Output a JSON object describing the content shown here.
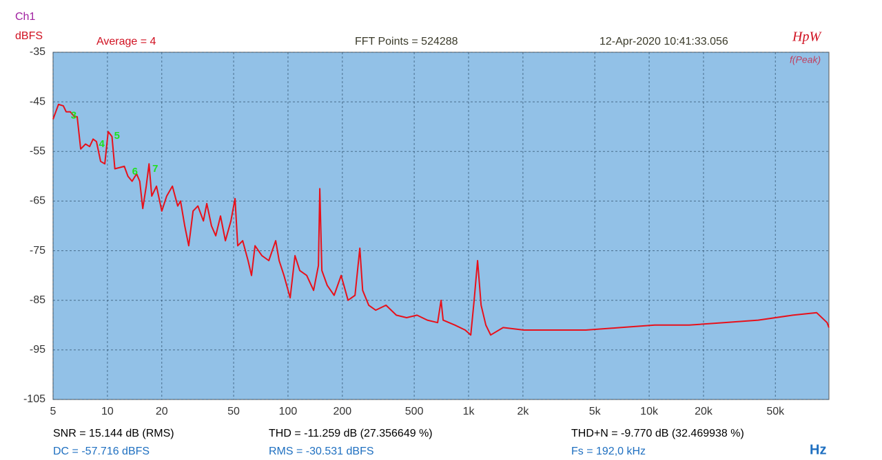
{
  "chart_data": {
    "type": "line",
    "channel": "Ch1",
    "y_label": "dBFS",
    "x_label": "Hz",
    "header": {
      "average": "Average = 4",
      "fft_points": "FFT Points = 524288",
      "timestamp": "12-Apr-2020 10:41:33.056",
      "logo": "HpW",
      "mode": "f(Peak)"
    },
    "footer": {
      "snr": "SNR = 15.144 dB (RMS)",
      "thd": "THD = -11.259 dB (27.356649 %)",
      "thdn": "THD+N = -9.770 dB (32.469938 %)",
      "dc": "DC = -57.716 dBFS",
      "rms": "RMS = -30.531 dBFS",
      "fs": "Fs = 192,0 kHz"
    },
    "xlog": true,
    "grid": true,
    "xlim": [
      5,
      99000
    ],
    "ylim": [
      -105,
      -35
    ],
    "xticks": [
      5,
      10,
      20,
      50,
      100,
      200,
      500,
      {
        "value": 1000,
        "label": "1k"
      },
      {
        "value": 2000,
        "label": "2k"
      },
      {
        "value": 5000,
        "label": "5k"
      },
      {
        "value": 10000,
        "label": "10k"
      },
      {
        "value": 20000,
        "label": "20k"
      },
      {
        "value": 50000,
        "label": "50k"
      }
    ],
    "yticks": [
      -35,
      -45,
      -55,
      -65,
      -75,
      -85,
      -95,
      -105
    ],
    "series": [
      {
        "color": "#e8101a",
        "x": [
          5,
          5.36,
          5.7,
          5.91,
          6.23,
          6.57,
          6.8,
          7.11,
          7.56,
          7.97,
          8.33,
          8.7,
          9.17,
          9.67,
          10.1,
          10.6,
          11.0,
          12.4,
          13.0,
          13.7,
          14.5,
          15.1,
          15.7,
          16.4,
          17.0,
          17.6,
          18.7,
          20.0,
          21.3,
          22.9,
          24.5,
          25.4,
          26.8,
          28.2,
          29.8,
          31.7,
          34.0,
          35.5,
          37.7,
          39.8,
          42.3,
          45.0,
          48.3,
          50.9,
          52.7,
          56.1,
          60.1,
          62.8,
          65.7,
          71.7,
          78.3,
          85.5,
          89.3,
          95.0,
          102.8,
          109.3,
          116.2,
          126.9,
          138.6,
          147.4,
          150,
          154,
          165,
          180,
          197,
          215,
          235,
          250,
          259,
          280,
          306,
          349,
          398,
          454,
          518,
          591,
          674,
          704,
          723,
          840,
          958,
          1028,
          1074,
          1122,
          1173,
          1247,
          1326,
          1554,
          2023,
          2873,
          4460,
          6919,
          10740,
          16670,
          25870,
          40150,
          62310,
          84700,
          96700,
          99000
        ],
        "values": [
          -48.5,
          -45.5,
          -45.8,
          -47,
          -47,
          -48,
          -48,
          -54.5,
          -53.5,
          -54,
          -52.5,
          -53,
          -57,
          -57.5,
          -51,
          -52,
          -58.5,
          -58,
          -60,
          -61,
          -59.5,
          -61,
          -66.5,
          -62,
          -57.5,
          -64,
          -62,
          -67,
          -64,
          -62,
          -66,
          -65,
          -70,
          -74,
          -67,
          -66,
          -69,
          -65.5,
          -70,
          -72,
          -68,
          -73,
          -69,
          -64.5,
          -74,
          -73,
          -77,
          -80,
          -74,
          -76,
          -77,
          -73,
          -77,
          -80,
          -84.5,
          -76,
          -79,
          -80,
          -83,
          -78,
          -62.5,
          -79,
          -82,
          -84,
          -80,
          -85,
          -84,
          -74.5,
          -83,
          -86,
          -87,
          -86,
          -88,
          -88.5,
          -88,
          -89,
          -89.5,
          -85,
          -89,
          -90,
          -91,
          -92,
          -85,
          -77,
          -86,
          -90,
          -92,
          -90.5,
          -91,
          -91,
          -91,
          -90.5,
          -90,
          -90,
          -89.5,
          -89,
          -88,
          -87.5,
          -89.5,
          -90.5
        ]
      }
    ],
    "annotations": [
      {
        "text": "3",
        "x": 6.5,
        "y": -47.8
      },
      {
        "text": "4",
        "x": 9.3,
        "y": -53.6
      },
      {
        "text": "5",
        "x": 11.3,
        "y": -51.9
      },
      {
        "text": "6",
        "x": 14.2,
        "y": -59.1
      },
      {
        "text": "7",
        "x": 18.4,
        "y": -58.6
      }
    ]
  }
}
